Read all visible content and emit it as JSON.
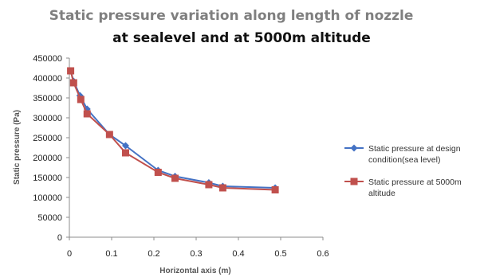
{
  "chart_data": {
    "type": "line",
    "title_line1": "Static pressure  variation along length of nozzle",
    "title_line2": "at sealevel and at 5000m altitude",
    "xlabel": "Horizontal axis (m)",
    "ylabel": "Static pressure (Pa)",
    "xlim": [
      0,
      0.6
    ],
    "ylim": [
      0,
      450000
    ],
    "x_ticks": [
      "0",
      "0.1",
      "0.2",
      "0.3",
      "0.4",
      "0.5",
      "0.6"
    ],
    "y_ticks": [
      "0",
      "50000",
      "100000",
      "150000",
      "200000",
      "250000",
      "300000",
      "350000",
      "400000",
      "450000"
    ],
    "grid": false,
    "legend_position": "right",
    "series": [
      {
        "name": "Static pressure at design condition(sea level)",
        "legend_lines": [
          "Static pressure at design",
          "condition(sea level)"
        ],
        "color": "#4472c4",
        "marker": "diamond",
        "x": [
          0.003,
          0.01,
          0.025,
          0.042,
          0.095,
          0.133,
          0.21,
          0.25,
          0.33,
          0.363,
          0.487
        ],
        "y": [
          418000,
          392000,
          356000,
          322000,
          258000,
          230000,
          168000,
          153000,
          137000,
          128000,
          124000
        ]
      },
      {
        "name": "Static pressure at 5000m altitude",
        "legend_lines": [
          "Static pressure at 5000m",
          "altitude"
        ],
        "color": "#c0504d",
        "marker": "square",
        "x": [
          0.003,
          0.01,
          0.027,
          0.042,
          0.095,
          0.133,
          0.21,
          0.25,
          0.33,
          0.363,
          0.487
        ],
        "y": [
          418000,
          388000,
          346000,
          310000,
          258000,
          212000,
          163000,
          148000,
          132000,
          124000,
          119000
        ]
      }
    ]
  }
}
